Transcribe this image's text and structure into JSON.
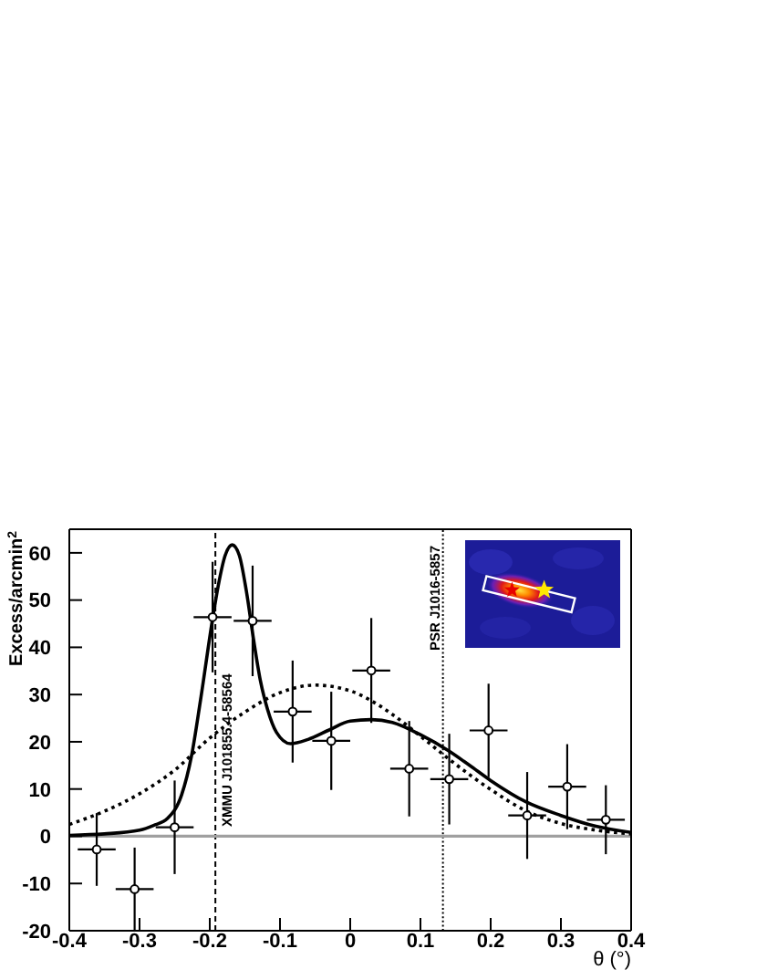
{
  "chart_data": {
    "type": "scatter",
    "xlabel": "θ (°)",
    "ylabel": "Excess/arcmin$^{2}$",
    "xlim": [
      -0.4,
      0.4
    ],
    "xticks": [
      -0.4,
      -0.3,
      -0.2,
      -0.1,
      0,
      0.1,
      0.2,
      0.3,
      0.4
    ],
    "ylim": [
      -20,
      65
    ],
    "yticks": [
      -20,
      -10,
      0,
      10,
      20,
      30,
      40,
      50,
      60
    ],
    "series": [
      {
        "color": "#000000",
        "marker": "circle",
        "x": [
          -0.361,
          -0.307,
          -0.25,
          -0.196,
          -0.139,
          -0.082,
          -0.027,
          0.03,
          0.084,
          0.141,
          0.197,
          0.252,
          0.309,
          0.364
        ],
        "values": [
          -2.8,
          -11.2,
          1.9,
          46.4,
          45.6,
          26.4,
          20.2,
          35.1,
          14.3,
          12.1,
          22.4,
          4.4,
          10.5,
          3.5
        ],
        "errors": [
          7.7,
          8.8,
          9.9,
          11.7,
          11.7,
          10.8,
          10.4,
          11.1,
          10.1,
          9.6,
          9.9,
          9.2,
          9,
          7.3
        ],
        "xerrors": [
          0.027,
          0.027,
          0.027,
          0.027,
          0.027,
          0.027,
          0.027,
          0.027,
          0.027,
          0.027,
          0.027,
          0.027,
          0.027,
          0.027
        ]
      },
      {
        "type": "line",
        "color": "#000000",
        "line_style": "solid",
        "x": [
          -0.4,
          -0.35,
          -0.3,
          -0.28,
          -0.26,
          -0.24,
          -0.226,
          -0.213,
          -0.196,
          -0.188,
          -0.178,
          -0.168,
          -0.158,
          -0.148,
          -0.138,
          -0.128,
          -0.118,
          -0.105,
          -0.085,
          -0.06,
          -0.03,
          0,
          0.03,
          0.06,
          0.1,
          0.14,
          0.17,
          0.2,
          0.25,
          0.3,
          0.35,
          0.4
        ],
        "values": [
          0.2,
          0.5,
          1.3,
          2.3,
          3.8,
          8.8,
          17,
          29,
          46,
          53,
          59.5,
          61.7,
          59.5,
          52,
          42,
          33,
          27,
          22,
          19.6,
          20.5,
          22.5,
          24.4,
          24.7,
          24.1,
          21.5,
          18.1,
          15,
          11.8,
          7.3,
          4.4,
          2.1,
          0.8
        ]
      },
      {
        "type": "line",
        "color": "#000000",
        "line_style": "dotted",
        "x": [
          -0.4,
          -0.35,
          -0.3,
          -0.25,
          -0.2,
          -0.15,
          -0.1,
          -0.05,
          0,
          0.03,
          0.06,
          0.1,
          0.14,
          0.2,
          0.25,
          0.3,
          0.35,
          0.4
        ],
        "values": [
          2.5,
          5.3,
          9,
          14,
          20.8,
          26.3,
          30.4,
          32,
          30.8,
          28.7,
          25.8,
          21.2,
          16.4,
          9.9,
          5.4,
          2.7,
          1.3,
          0.5
        ]
      }
    ],
    "ref_lines": [
      {
        "axis": "x",
        "value": -0.192,
        "label": "XMMU J101855.4-58564",
        "line_style": "dashed",
        "color": "#000000"
      },
      {
        "axis": "x",
        "value": 0.132,
        "label": "PSR J1016-5857",
        "line_style": "dotted",
        "color": "#000000"
      },
      {
        "axis": "y",
        "value": 0,
        "color": "#a0a0a0"
      }
    ]
  }
}
